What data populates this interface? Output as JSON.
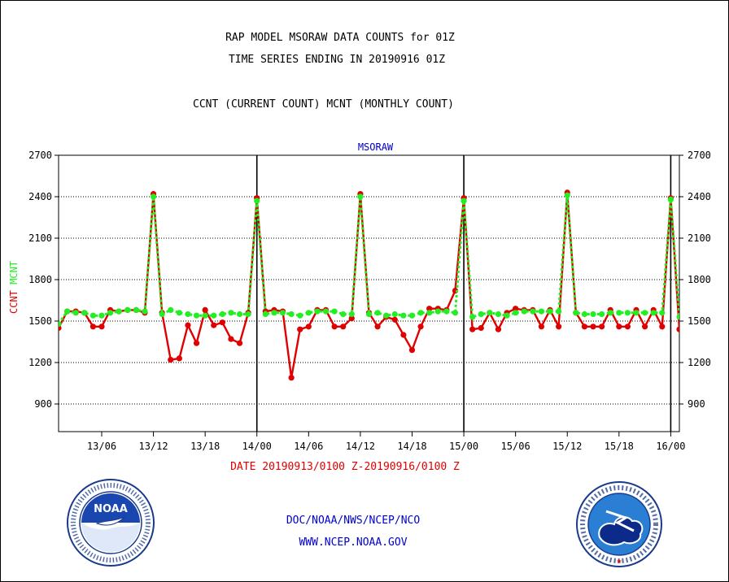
{
  "title_line1": "RAP MODEL MSORAW DATA COUNTS for 01Z",
  "title_line2": "TIME SERIES ENDING IN 20190916 01Z",
  "subtitle": "CCNT (CURRENT COUNT) MCNT (MONTHLY COUNT)",
  "date_range": "DATE 20190913/0100 Z-20190916/0100 Z",
  "credit_line1": "DOC/NOAA/NWS/NCEP/NCO",
  "credit_line2": "WWW.NCEP.NOAA.GOV",
  "logos": {
    "left": "noaa-logo",
    "right": "national-weather-service-logo"
  },
  "colors": {
    "ccnt": "#e00000",
    "mcnt": "#22ee22",
    "title_text": "#0000cc"
  },
  "chart_data": {
    "type": "line",
    "title": "MSORAW",
    "ylabel_parts": [
      {
        "text": "CCNT",
        "color": "#e00000"
      },
      {
        "text": "MCNT",
        "color": "#22ee22"
      }
    ],
    "ylim": [
      700,
      2700
    ],
    "yticks": [
      900,
      1200,
      1500,
      1800,
      2100,
      2400,
      2700
    ],
    "grid": true,
    "x_range_hours": [
      1,
      73
    ],
    "x_unit": "hour since 2019-09-13 00Z",
    "xticks": [
      {
        "h": 6,
        "label": "13/06"
      },
      {
        "h": 12,
        "label": "13/12"
      },
      {
        "h": 18,
        "label": "13/18"
      },
      {
        "h": 24,
        "label": "14/00"
      },
      {
        "h": 30,
        "label": "14/06"
      },
      {
        "h": 36,
        "label": "14/12"
      },
      {
        "h": 42,
        "label": "14/18"
      },
      {
        "h": 48,
        "label": "15/00"
      },
      {
        "h": 54,
        "label": "15/06"
      },
      {
        "h": 60,
        "label": "15/12"
      },
      {
        "h": 66,
        "label": "15/18"
      },
      {
        "h": 72,
        "label": "16/00"
      }
    ],
    "day_boundaries": [
      24,
      48,
      72
    ],
    "x": [
      1,
      2,
      3,
      4,
      5,
      6,
      7,
      8,
      9,
      10,
      11,
      12,
      13,
      14,
      15,
      16,
      17,
      18,
      19,
      20,
      21,
      22,
      23,
      24,
      25,
      26,
      27,
      28,
      29,
      30,
      31,
      32,
      33,
      34,
      35,
      36,
      37,
      38,
      39,
      40,
      41,
      42,
      43,
      44,
      45,
      46,
      47,
      48,
      49,
      50,
      51,
      52,
      53,
      54,
      55,
      56,
      57,
      58,
      59,
      60,
      61,
      62,
      63,
      64,
      65,
      66,
      67,
      68,
      69,
      70,
      71,
      72,
      73
    ],
    "series": [
      {
        "name": "CCNT",
        "color": "#e00000",
        "values": [
          1450,
          1570,
          1570,
          1560,
          1460,
          1460,
          1580,
          1570,
          1580,
          1580,
          1560,
          2420,
          1560,
          1220,
          1230,
          1470,
          1340,
          1580,
          1470,
          1490,
          1370,
          1340,
          1560,
          2390,
          1570,
          1580,
          1570,
          1090,
          1440,
          1460,
          1580,
          1580,
          1460,
          1460,
          1520,
          2420,
          1560,
          1460,
          1530,
          1510,
          1400,
          1290,
          1460,
          1590,
          1590,
          1580,
          1720,
          2390,
          1440,
          1450,
          1560,
          1440,
          1560,
          1590,
          1580,
          1580,
          1460,
          1580,
          1460,
          2430,
          1560,
          1460,
          1460,
          1460,
          1580,
          1460,
          1460,
          1580,
          1460,
          1580,
          1460,
          2390,
          1440
        ]
      },
      {
        "name": "MCNT",
        "color": "#22ee22",
        "values": [
          1480,
          1570,
          1560,
          1560,
          1540,
          1540,
          1560,
          1570,
          1580,
          1580,
          1570,
          2400,
          1550,
          1580,
          1560,
          1550,
          1540,
          1540,
          1540,
          1550,
          1560,
          1550,
          1550,
          2370,
          1550,
          1560,
          1560,
          1550,
          1540,
          1560,
          1570,
          1570,
          1570,
          1550,
          1550,
          2400,
          1550,
          1560,
          1540,
          1550,
          1540,
          1540,
          1560,
          1560,
          1570,
          1570,
          1560,
          2370,
          1530,
          1550,
          1560,
          1550,
          1540,
          1560,
          1570,
          1570,
          1570,
          1570,
          1570,
          2410,
          1560,
          1550,
          1550,
          1550,
          1560,
          1560,
          1560,
          1560,
          1560,
          1560,
          1560,
          2380,
          1530
        ]
      }
    ]
  }
}
